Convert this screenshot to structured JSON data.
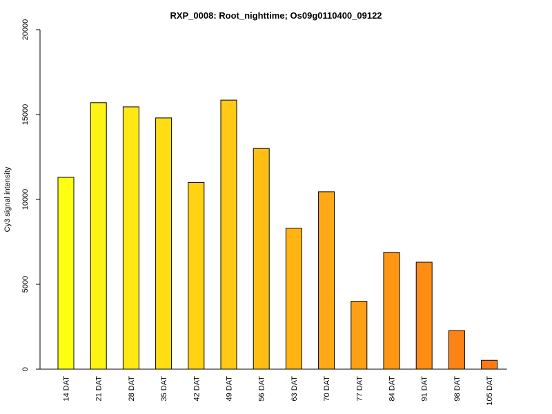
{
  "chart_data": {
    "type": "bar",
    "title": "RXP_0008: Root_nighttime; Os09g0110400_09122",
    "xlabel": "",
    "ylabel": "Cy3 signal intensity",
    "ylim": [
      0,
      20000
    ],
    "yticks": [
      0,
      5000,
      10000,
      15000,
      20000
    ],
    "grid": false,
    "legend": "none",
    "categories": [
      "14 DAT",
      "21 DAT",
      "28 DAT",
      "35 DAT",
      "42 DAT",
      "49 DAT",
      "56 DAT",
      "63 DAT",
      "70 DAT",
      "77 DAT",
      "84 DAT",
      "91 DAT",
      "98 DAT",
      "105 DAT"
    ],
    "values": [
      11300,
      15700,
      15450,
      14800,
      11000,
      15850,
      13000,
      8300,
      10450,
      4000,
      6880,
      6300,
      2270,
      520
    ],
    "colors": [
      "#FFFF14",
      "#FFF314",
      "#FFE814",
      "#FFDD14",
      "#FFD314",
      "#FFC914",
      "#FFBE14",
      "#FFB414",
      "#FFAA14",
      "#FFA014",
      "#FF9714",
      "#FF8D14",
      "#FF8314",
      "#FF7A14"
    ],
    "bar_outline": "#000000"
  }
}
